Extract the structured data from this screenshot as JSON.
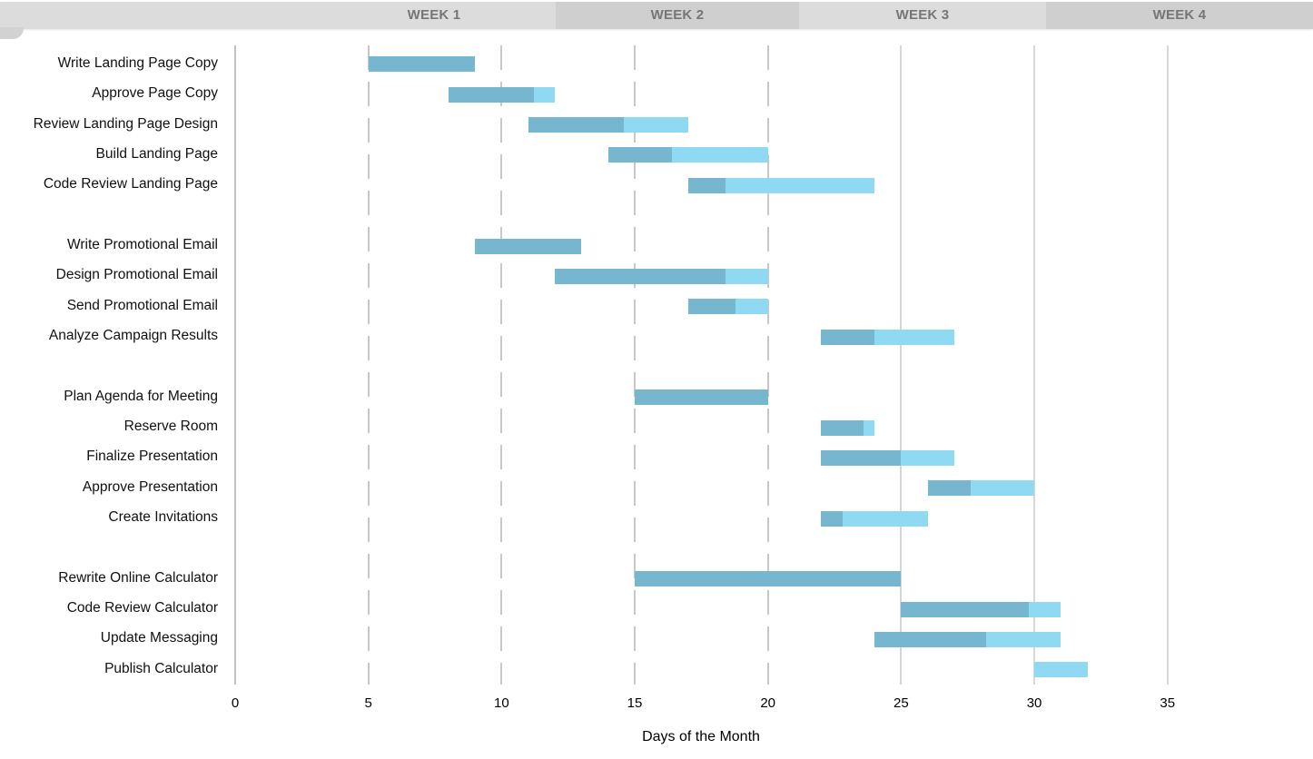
{
  "header": {
    "weeks": [
      {
        "label": "WEEK 1",
        "shade": "light"
      },
      {
        "label": "WEEK 2",
        "shade": "dark"
      },
      {
        "label": "WEEK 3",
        "shade": "light"
      },
      {
        "label": "WEEK 4",
        "shade": "dark"
      }
    ]
  },
  "colors": {
    "band_light": "#dcdcdc",
    "band_dark": "#cfcfcf",
    "week_text": "#767676",
    "bar_complete": "#76b7cf",
    "bar_remaining": "#8fd9f3",
    "grid_axis": "#c2c2c2",
    "grid_dashed": "#c8c8c8",
    "grid_solid": "#d7d7d7",
    "label_text": "#111111"
  },
  "chart_data": {
    "type": "bar",
    "subtype": "gantt",
    "xlabel": "Days of the Month",
    "x_ticks": [
      0,
      5,
      10,
      15,
      20,
      25,
      30,
      35
    ],
    "x_range": [
      0,
      40
    ],
    "grid": "vertical-only",
    "legend_position": "none",
    "gridline_styles": {
      "0": "axis",
      "5": "dashed",
      "10": "dashed",
      "15": "dashed",
      "20": "dashed",
      "25": "solid",
      "30": "solid",
      "35": "solid"
    },
    "groups": [
      {
        "tasks": [
          {
            "label": "Write Landing Page Copy",
            "start_day": 5,
            "end_day": 9,
            "percent_complete": 100
          },
          {
            "label": "Approve Page Copy",
            "start_day": 8,
            "end_day": 12,
            "percent_complete": 80
          },
          {
            "label": "Review Landing Page Design",
            "start_day": 11,
            "end_day": 17,
            "percent_complete": 60
          },
          {
            "label": "Build Landing Page",
            "start_day": 14,
            "end_day": 20,
            "percent_complete": 40
          },
          {
            "label": "Code Review Landing Page",
            "start_day": 17,
            "end_day": 24,
            "percent_complete": 20
          }
        ]
      },
      {
        "tasks": [
          {
            "label": "Write Promotional Email",
            "start_day": 9,
            "end_day": 13,
            "percent_complete": 100
          },
          {
            "label": "Design Promotional Email",
            "start_day": 12,
            "end_day": 20,
            "percent_complete": 80
          },
          {
            "label": "Send Promotional Email",
            "start_day": 17,
            "end_day": 20,
            "percent_complete": 60
          },
          {
            "label": "Analyze Campaign Results",
            "start_day": 22,
            "end_day": 27,
            "percent_complete": 40
          }
        ]
      },
      {
        "tasks": [
          {
            "label": "Plan Agenda for Meeting",
            "start_day": 15,
            "end_day": 20,
            "percent_complete": 100
          },
          {
            "label": "Reserve Room",
            "start_day": 22,
            "end_day": 24,
            "percent_complete": 80
          },
          {
            "label": "Finalize Presentation",
            "start_day": 22,
            "end_day": 27,
            "percent_complete": 60
          },
          {
            "label": "Approve Presentation",
            "start_day": 26,
            "end_day": 30,
            "percent_complete": 40
          },
          {
            "label": "Create Invitations",
            "start_day": 22,
            "end_day": 26,
            "percent_complete": 20
          }
        ]
      },
      {
        "tasks": [
          {
            "label": "Rewrite Online Calculator",
            "start_day": 15,
            "end_day": 25,
            "percent_complete": 100
          },
          {
            "label": "Code Review Calculator",
            "start_day": 25,
            "end_day": 31,
            "percent_complete": 80
          },
          {
            "label": "Update Messaging",
            "start_day": 24,
            "end_day": 31,
            "percent_complete": 60
          },
          {
            "label": "Publish Calculator",
            "start_day": 30,
            "end_day": 32,
            "percent_complete": 0
          }
        ]
      }
    ]
  }
}
